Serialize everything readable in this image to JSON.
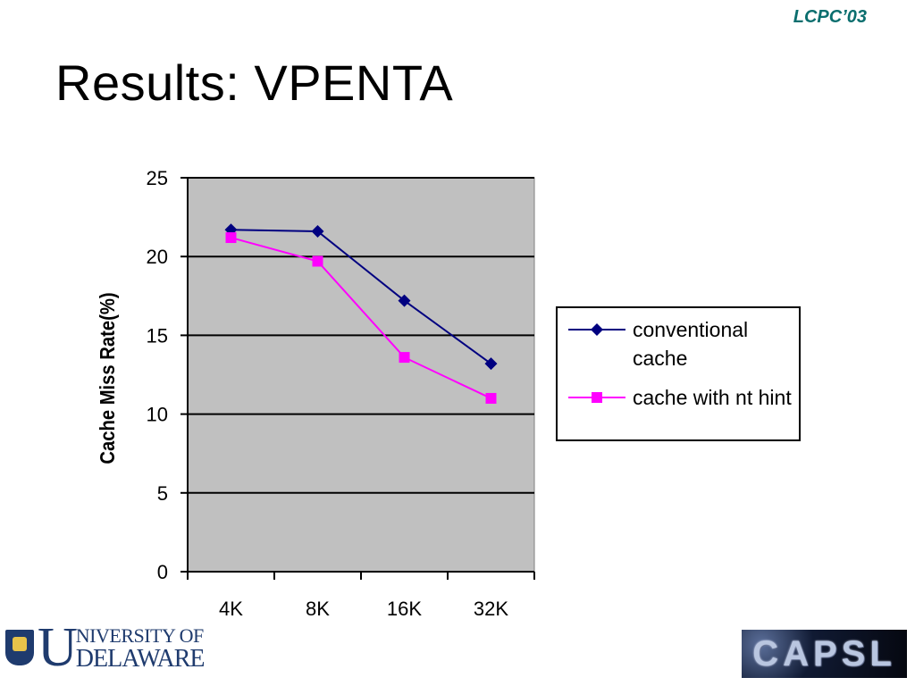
{
  "slide": {
    "conference": "LCPC’03",
    "title": "Results: VPENTA"
  },
  "chart_data": {
    "type": "line",
    "categories": [
      "4K",
      "8K",
      "16K",
      "32K"
    ],
    "ylabel": "Cache Miss Rate(%)",
    "xlabel": "",
    "ylim": [
      0,
      25
    ],
    "yticks": [
      0,
      5,
      10,
      15,
      20,
      25
    ],
    "grid": true,
    "plot_background": "#c0c0c0",
    "legend_position": "right",
    "series": [
      {
        "name": "conventional cache",
        "values": [
          21.7,
          21.6,
          17.2,
          13.2
        ],
        "color": "#000080",
        "marker": "diamond"
      },
      {
        "name": "cache with nt hint",
        "values": [
          21.2,
          19.7,
          13.6,
          11.0
        ],
        "color": "#ff00ff",
        "marker": "square"
      }
    ]
  },
  "logos": {
    "university": {
      "big_letters": [
        "U",
        "D"
      ],
      "line1": "NIVERSITY OF",
      "line2": "ELAWARE"
    },
    "lab": {
      "text": "CAPSL"
    }
  }
}
